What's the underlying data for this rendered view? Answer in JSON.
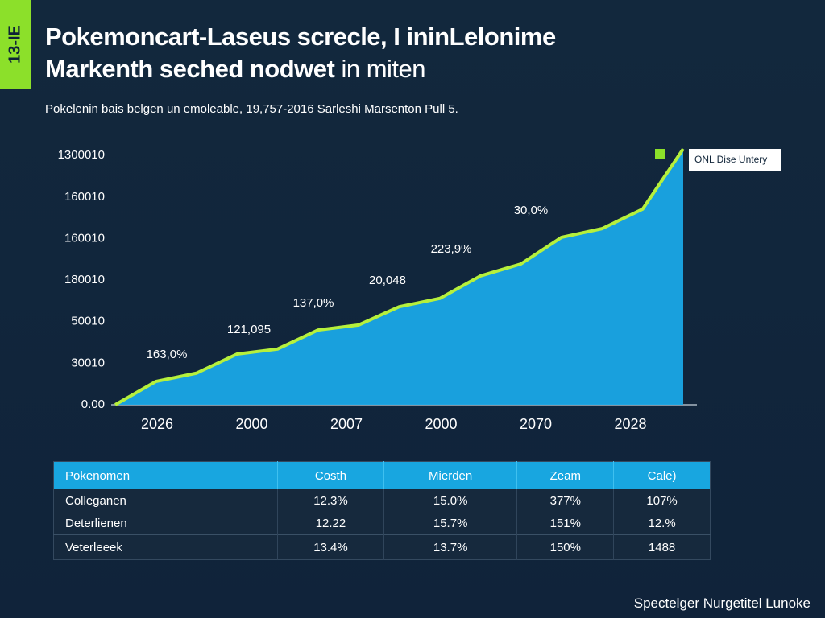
{
  "side_tab": "13-IE",
  "chart_data": {
    "type": "area",
    "title": "Pokemoncart-Laseus screcle, I ininLelonime",
    "title_line2": "Markenth seched nodwet",
    "title_line2_light": "in miten",
    "subtitle": "Pokelenin bais belgen un emoleable, 19,757-2016 Sarleshi Marsenton Pull 5.",
    "x_labels": [
      "2026",
      "2000",
      "2007",
      "2000",
      "2070",
      "2028"
    ],
    "series": [
      {
        "name": "ONL Dise Untery",
        "color": "#b6f03c",
        "fill": "#1aa7e6",
        "values": [
          0,
          0.56,
          0.76,
          1.22,
          1.34,
          1.8,
          1.92,
          2.36,
          2.56,
          3.1,
          3.39,
          4.03,
          4.24,
          4.71,
          6.16
        ]
      }
    ],
    "annotations": [
      "163,0%",
      "121,095",
      "137,0%",
      "20,048",
      "223,9%",
      "30,0%"
    ],
    "ylim": [
      0,
      6.16
    ],
    "yticks": [
      {
        "value": 0,
        "label": "0.00"
      },
      {
        "value": 1,
        "label": "30010"
      },
      {
        "value": 2,
        "label": "50010"
      },
      {
        "value": 3,
        "label": "180010"
      },
      {
        "value": 4,
        "label": "160010"
      },
      {
        "value": 5,
        "label": "160010"
      },
      {
        "value": 6,
        "label": "1300010"
      }
    ],
    "legend": "top-right"
  },
  "table": {
    "header": [
      "Pokenomen",
      "Costh",
      "Mierden",
      "Zeam",
      "Cale)"
    ],
    "rows": [
      [
        "Colleganen",
        "12.3%",
        "15.0%",
        "377%",
        "107%"
      ],
      [
        "Deterlienen",
        "12.22",
        "15.7%",
        "151%",
        "12.%"
      ],
      [
        "Veterleeek",
        "13.4%",
        "13.7%",
        "150%",
        "1488"
      ]
    ]
  },
  "footer": "Spectelger Nurgetitel Lunoke"
}
